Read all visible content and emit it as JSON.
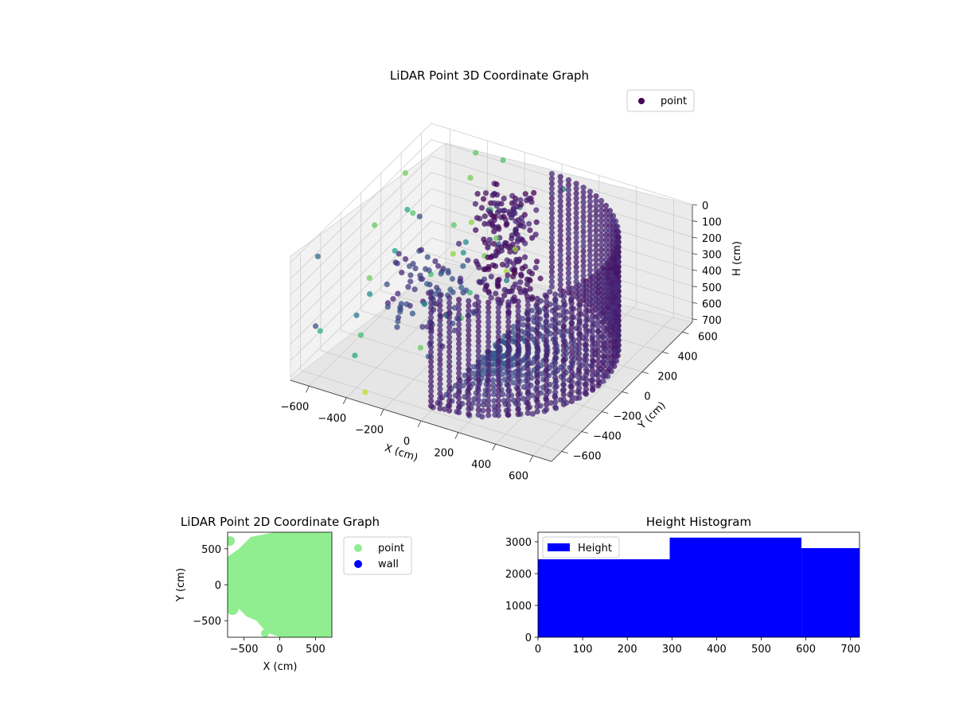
{
  "chart_data": [
    {
      "type": "scatter",
      "title": "LiDAR Point 3D Coordinate Graph",
      "xlabel": "X (cm)",
      "ylabel": "Y (cm)",
      "zlabel": "H (cm)",
      "xlim": [
        -700,
        700
      ],
      "ylim": [
        -700,
        700
      ],
      "zlim": [
        0,
        720
      ],
      "z_inverted": true,
      "x_ticks": [
        "−600",
        "−400",
        "−200",
        "0",
        "200",
        "400",
        "600"
      ],
      "y_ticks": [
        "−600",
        "−400",
        "−200",
        "0",
        "200",
        "400",
        "600"
      ],
      "z_ticks": [
        "0",
        "100",
        "200",
        "300",
        "400",
        "500",
        "600",
        "700"
      ],
      "colormap": "viridis",
      "legend": {
        "entries": [
          "point"
        ],
        "placement": "top-right"
      },
      "series": [
        {
          "name": "point",
          "color": "#440154",
          "description": "semicircular wall ring of radius ~600 cm, heights 0–720 cm, plus interior floor points and scattered outliers",
          "ring_radius": 600,
          "ring_theta_deg": [
            -90,
            90
          ],
          "sample_points": [
            {
              "x": 600,
              "y": 0,
              "h": 0
            },
            {
              "x": 600,
              "y": 0,
              "h": 700
            },
            {
              "x": 0,
              "y": 600,
              "h": 0
            },
            {
              "x": 0,
              "y": -600,
              "h": 700
            },
            {
              "x": -150,
              "y": 300,
              "h": 650
            },
            {
              "x": -500,
              "y": -100,
              "h": 300
            },
            {
              "x": -650,
              "y": 200,
              "h": 150
            }
          ]
        }
      ],
      "grid": true
    },
    {
      "type": "scatter",
      "title": "LiDAR Point 2D Coordinate Graph",
      "xlabel": "X (cm)",
      "ylabel": "Y (cm)",
      "xlim": [
        -730,
        730
      ],
      "ylim": [
        -730,
        730
      ],
      "x_ticks": [
        "−500",
        "0",
        "500"
      ],
      "y_ticks": [
        "−500",
        "0",
        "500"
      ],
      "legend": {
        "entries": [
          "point",
          "wall"
        ],
        "placement": "outside-right"
      },
      "series": [
        {
          "name": "point",
          "color": "#90ee90",
          "description": "filled half-disk x ≥ ~0 within radius ~700, with irregular blobs extending left"
        },
        {
          "name": "wall",
          "color": "#0000ff",
          "points": []
        }
      ]
    },
    {
      "type": "bar",
      "title": "Height Histogram",
      "legend": {
        "entries": [
          "Height"
        ],
        "placement": "top-left"
      },
      "xlim": [
        0,
        720
      ],
      "ylim": [
        0,
        3300
      ],
      "x_ticks": [
        "0",
        "100",
        "200",
        "300",
        "400",
        "500",
        "600",
        "700"
      ],
      "y_ticks": [
        "0",
        "1000",
        "2000",
        "3000"
      ],
      "bins": [
        {
          "start": 0,
          "end": 295,
          "count": 2450
        },
        {
          "start": 295,
          "end": 590,
          "count": 3130
        },
        {
          "start": 590,
          "end": 720,
          "count": 2800
        }
      ],
      "series": [
        {
          "name": "Height",
          "color": "#0000ff"
        }
      ]
    }
  ]
}
